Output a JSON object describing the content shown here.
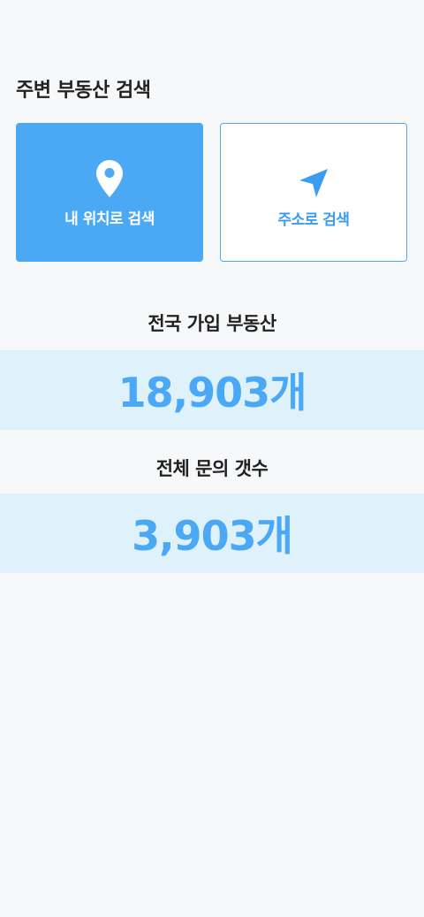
{
  "header": {
    "title": "주변 부동산 검색"
  },
  "search_options": [
    {
      "label": "내 위치로 검색",
      "icon": "location-pin-icon"
    },
    {
      "label": "주소로 검색",
      "icon": "navigation-arrow-icon"
    }
  ],
  "stats": {
    "registered": {
      "label": "전국 가입 부동산",
      "value": "18,903개"
    },
    "inquiries": {
      "label": "전체 문의 갯수",
      "value": "3,903개"
    }
  },
  "colors": {
    "accent": "#4aa8f5",
    "band": "#dff1fb",
    "background": "#f7f8fa"
  }
}
